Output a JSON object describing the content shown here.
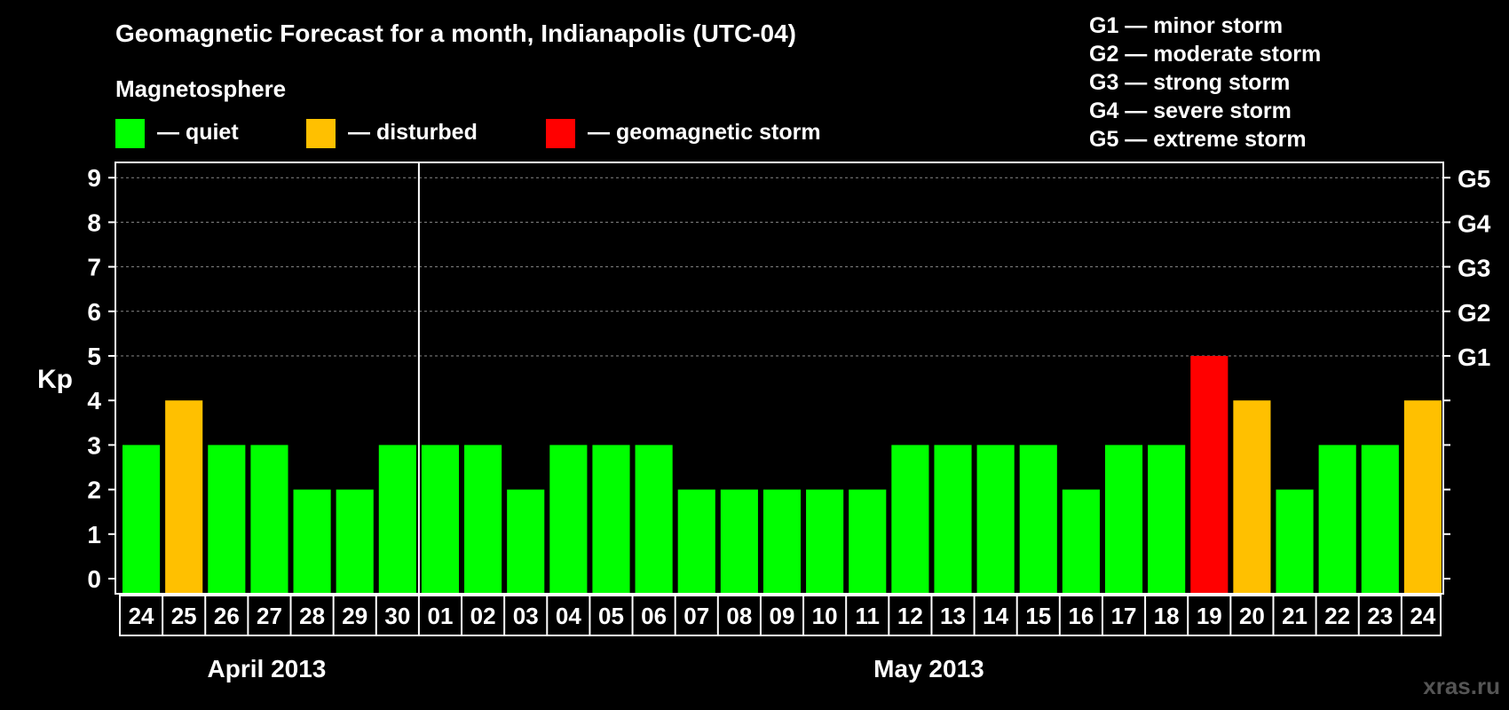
{
  "chart_data": {
    "type": "bar",
    "title": "Geomagnetic Forecast for a month, Indianapolis (UTC-04)",
    "legend_title": "Magnetosphere",
    "legend": [
      {
        "label": "— quiet",
        "color": "#00ff00"
      },
      {
        "label": "— disturbed",
        "color": "#ffc000"
      },
      {
        "label": "— geomagnetic storm",
        "color": "#ff0000"
      }
    ],
    "storm_levels": [
      "G1 — minor storm",
      "G2 — moderate storm",
      "G3 — strong storm",
      "G4 — severe storm",
      "G5 — extreme storm"
    ],
    "ylabel": "Kp",
    "ylim": [
      0,
      9
    ],
    "yticks": [
      "0",
      "1",
      "2",
      "3",
      "4",
      "5",
      "6",
      "7",
      "8",
      "9"
    ],
    "right_axis_labels": [
      {
        "kp": 5,
        "label": "G1"
      },
      {
        "kp": 6,
        "label": "G2"
      },
      {
        "kp": 7,
        "label": "G3"
      },
      {
        "kp": 8,
        "label": "G4"
      },
      {
        "kp": 9,
        "label": "G5"
      }
    ],
    "months": [
      {
        "label": "April 2013",
        "days": 7
      },
      {
        "label": "May 2013",
        "days": 24
      }
    ],
    "categories": [
      "24",
      "25",
      "26",
      "27",
      "28",
      "29",
      "30",
      "01",
      "02",
      "03",
      "04",
      "05",
      "06",
      "07",
      "08",
      "09",
      "10",
      "11",
      "12",
      "13",
      "14",
      "15",
      "16",
      "17",
      "18",
      "19",
      "20",
      "21",
      "22",
      "23",
      "24"
    ],
    "values": [
      3,
      4,
      3,
      3,
      2,
      2,
      3,
      3,
      3,
      2,
      3,
      3,
      3,
      2,
      2,
      2,
      2,
      2,
      3,
      3,
      3,
      3,
      2,
      3,
      3,
      5,
      4,
      2,
      3,
      3,
      4
    ],
    "colors": {
      "quiet": "#00ff00",
      "disturbed": "#ffc000",
      "storm": "#ff0000"
    },
    "grid": "dashed at Kp 5-9"
  },
  "watermark": "xras.ru"
}
